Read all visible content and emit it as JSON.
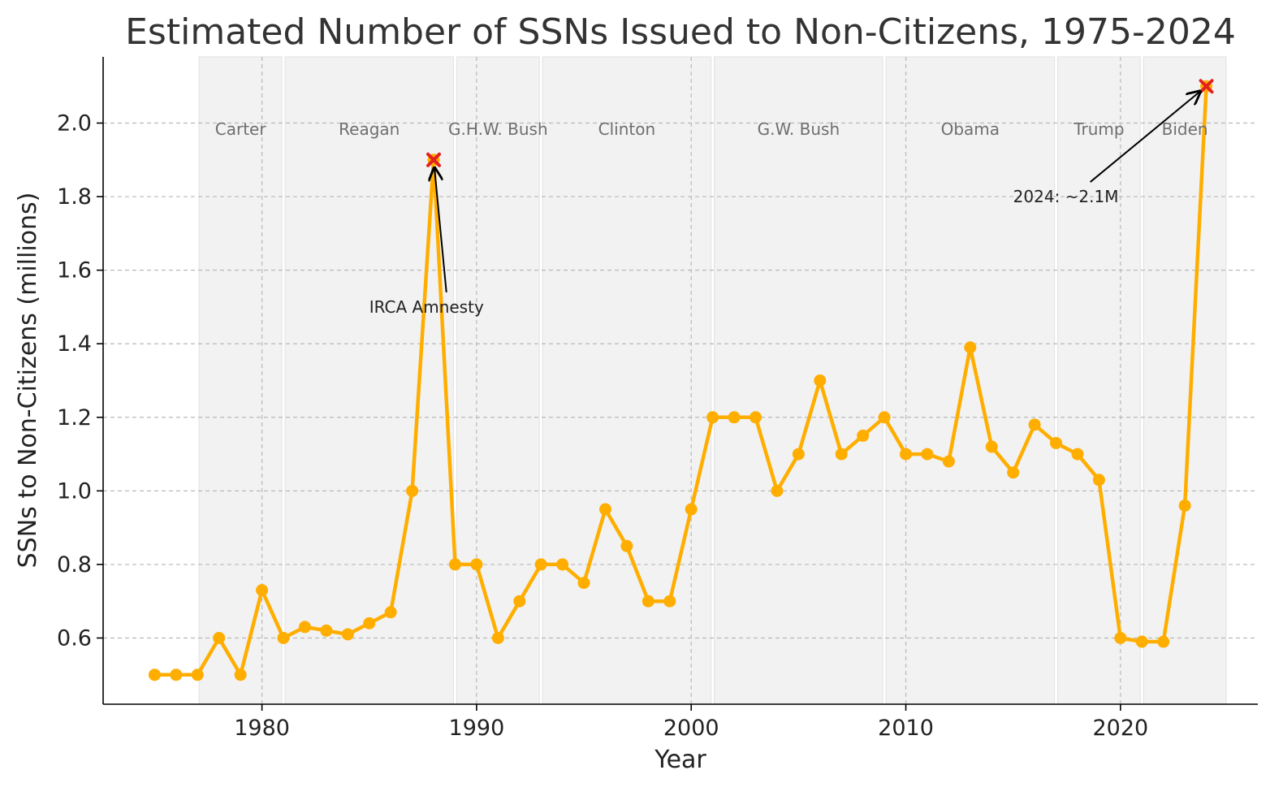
{
  "chart_data": {
    "type": "line",
    "title": "Estimated Number of SSNs Issued to Non-Citizens, 1975-2024",
    "xlabel": "Year",
    "ylabel": "SSNs to Non-Citizens (millions)",
    "xlim": [
      1972.6,
      2026.4
    ],
    "ylim": [
      0.42,
      2.18
    ],
    "x_ticks": [
      1980,
      1990,
      2000,
      2010,
      2020
    ],
    "y_ticks": [
      0.6,
      0.8,
      1.0,
      1.2,
      1.4,
      1.6,
      1.8,
      2.0
    ],
    "y_tick_labels": [
      "0.6",
      "0.8",
      "1.0",
      "1.2",
      "1.4",
      "1.6",
      "1.8",
      "2.0"
    ],
    "grid": true,
    "line_color": "#ffae00",
    "highlight_color": "#e32020",
    "band_color": "#f2f2f2",
    "series": [
      {
        "x": [
          1975,
          1976,
          1977,
          1978,
          1979,
          1980,
          1981,
          1982,
          1983,
          1984,
          1985,
          1986,
          1987,
          1988,
          1989,
          1990,
          1991,
          1992,
          1993,
          1994,
          1995,
          1996,
          1997,
          1998,
          1999,
          2000,
          2001,
          2002,
          2003,
          2004,
          2005,
          2006,
          2007,
          2008,
          2009,
          2010,
          2011,
          2012,
          2013,
          2014,
          2015,
          2016,
          2017,
          2018,
          2019,
          2020,
          2021,
          2022,
          2023,
          2024
        ],
        "y": [
          0.5,
          0.5,
          0.5,
          0.6,
          0.5,
          0.73,
          0.6,
          0.63,
          0.62,
          0.61,
          0.64,
          0.67,
          1.0,
          1.9,
          0.8,
          0.8,
          0.6,
          0.7,
          0.8,
          0.8,
          0.75,
          0.95,
          0.85,
          0.7,
          0.7,
          0.95,
          1.2,
          1.2,
          1.2,
          1.0,
          1.1,
          1.3,
          1.1,
          1.15,
          1.2,
          1.1,
          1.1,
          1.08,
          1.39,
          1.12,
          1.05,
          1.18,
          1.13,
          1.1,
          1.03,
          0.6,
          0.59,
          0.59,
          0.96,
          2.1
        ]
      }
    ],
    "highlights": [
      {
        "x": 1988,
        "y": 1.9
      },
      {
        "x": 2024,
        "y": 2.1
      }
    ],
    "eras": [
      {
        "name": "Carter",
        "start": 1977,
        "end": 1981
      },
      {
        "name": "Reagan",
        "start": 1981,
        "end": 1989
      },
      {
        "name": "G.H.W. Bush",
        "start": 1989,
        "end": 1993
      },
      {
        "name": "Clinton",
        "start": 1993,
        "end": 2001
      },
      {
        "name": "G.W. Bush",
        "start": 2001,
        "end": 2009
      },
      {
        "name": "Obama",
        "start": 2009,
        "end": 2017
      },
      {
        "name": "Trump",
        "start": 2017,
        "end": 2021
      },
      {
        "name": "Biden",
        "start": 2021,
        "end": 2025
      }
    ],
    "era_label_y": 1.95,
    "annotations": [
      {
        "text": "IRCA Amnesty",
        "x": 1988,
        "y": 1.9,
        "text_x": 1985,
        "text_y": 1.5
      },
      {
        "text": "2024: ~2.1M",
        "x": 2024,
        "y": 2.1,
        "text_x": 2015,
        "text_y": 1.8
      }
    ]
  }
}
